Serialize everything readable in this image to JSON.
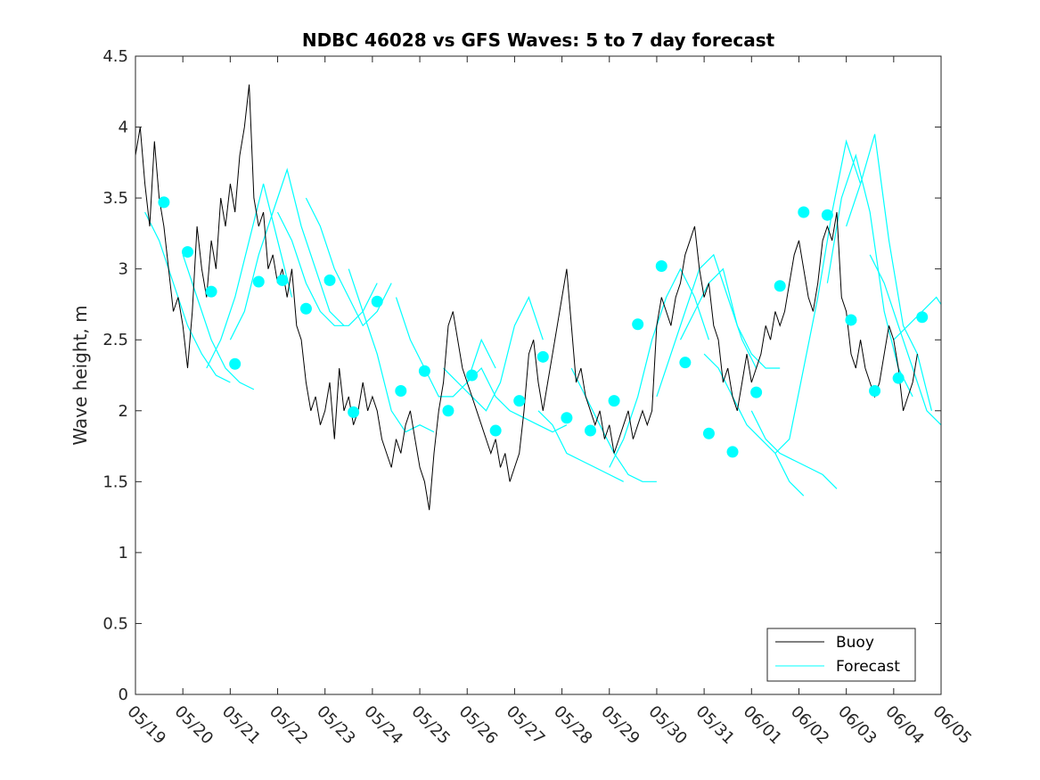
{
  "chart_data": {
    "type": "line",
    "title": "NDBC 46028 vs GFS Waves: 5 to 7 day forecast",
    "xlabel": "",
    "ylabel": "Wave height, m",
    "xlim": [
      0,
      17
    ],
    "ylim": [
      0,
      4.5
    ],
    "x_tick_labels": [
      "05/19",
      "05/20",
      "05/21",
      "05/22",
      "05/23",
      "05/24",
      "05/25",
      "05/26",
      "05/27",
      "05/28",
      "05/29",
      "05/30",
      "05/31",
      "06/01",
      "06/02",
      "06/03",
      "06/04",
      "06/05"
    ],
    "y_ticks": [
      0,
      0.5,
      1,
      1.5,
      2,
      2.5,
      3,
      3.5,
      4,
      4.5
    ],
    "y_tick_labels": [
      "0",
      "0.5",
      "1",
      "1.5",
      "2",
      "2.5",
      "3",
      "3.5",
      "4",
      "4.5"
    ],
    "grid": false,
    "legend": {
      "position": "bottom-right",
      "entries": [
        "Buoy",
        "Forecast"
      ]
    },
    "colors": {
      "buoy": "#000000",
      "forecast": "#00ffff"
    },
    "series": [
      {
        "name": "Buoy",
        "style": "line",
        "x": [
          0,
          0.1,
          0.2,
          0.3,
          0.4,
          0.5,
          0.6,
          0.7,
          0.8,
          0.9,
          1.0,
          1.1,
          1.2,
          1.3,
          1.4,
          1.5,
          1.6,
          1.7,
          1.8,
          1.9,
          2.0,
          2.1,
          2.2,
          2.3,
          2.4,
          2.5,
          2.6,
          2.7,
          2.8,
          2.9,
          3.0,
          3.1,
          3.2,
          3.3,
          3.4,
          3.5,
          3.6,
          3.7,
          3.8,
          3.9,
          4.0,
          4.1,
          4.2,
          4.3,
          4.4,
          4.5,
          4.6,
          4.7,
          4.8,
          4.9,
          5.0,
          5.1,
          5.2,
          5.3,
          5.4,
          5.5,
          5.6,
          5.7,
          5.8,
          5.9,
          6.0,
          6.1,
          6.2,
          6.3,
          6.4,
          6.5,
          6.6,
          6.7,
          6.8,
          6.9,
          7.0,
          7.1,
          7.2,
          7.3,
          7.4,
          7.5,
          7.6,
          7.7,
          7.8,
          7.9,
          8.0,
          8.1,
          8.2,
          8.3,
          8.4,
          8.5,
          8.6,
          8.7,
          8.8,
          8.9,
          9.0,
          9.1,
          9.2,
          9.3,
          9.4,
          9.5,
          9.6,
          9.7,
          9.8,
          9.9,
          10.0,
          10.1,
          10.2,
          10.3,
          10.4,
          10.5,
          10.6,
          10.7,
          10.8,
          10.9,
          11.0,
          11.1,
          11.2,
          11.3,
          11.4,
          11.5,
          11.6,
          11.7,
          11.8,
          11.9,
          12.0,
          12.1,
          12.2,
          12.3,
          12.4,
          12.5,
          12.6,
          12.7,
          12.8,
          12.9,
          13.0,
          13.1,
          13.2,
          13.3,
          13.4,
          13.5,
          13.6,
          13.7,
          13.8,
          13.9,
          14.0,
          14.1,
          14.2,
          14.3,
          14.4,
          14.5,
          14.6,
          14.7,
          14.8,
          14.9,
          15.0,
          15.1,
          15.2,
          15.3,
          15.4,
          15.5,
          15.6,
          15.7,
          15.8,
          15.9,
          16.0,
          16.1,
          16.2,
          16.3,
          16.4,
          16.5
        ],
        "y": [
          3.8,
          4.0,
          3.6,
          3.3,
          3.9,
          3.5,
          3.3,
          3.0,
          2.7,
          2.8,
          2.6,
          2.3,
          2.7,
          3.3,
          3.0,
          2.8,
          3.2,
          3.0,
          3.5,
          3.3,
          3.6,
          3.4,
          3.8,
          4.0,
          4.3,
          3.5,
          3.3,
          3.4,
          3.0,
          3.1,
          2.9,
          3.0,
          2.8,
          3.0,
          2.6,
          2.5,
          2.2,
          2.0,
          2.1,
          1.9,
          2.0,
          2.2,
          1.8,
          2.3,
          2.0,
          2.1,
          1.9,
          2.0,
          2.2,
          2.0,
          2.1,
          2.0,
          1.8,
          1.7,
          1.6,
          1.8,
          1.7,
          1.9,
          2.0,
          1.8,
          1.6,
          1.5,
          1.3,
          1.7,
          2.0,
          2.2,
          2.6,
          2.7,
          2.5,
          2.3,
          2.2,
          2.1,
          2.0,
          1.9,
          1.8,
          1.7,
          1.8,
          1.6,
          1.7,
          1.5,
          1.6,
          1.7,
          2.0,
          2.4,
          2.5,
          2.2,
          2.0,
          2.2,
          2.4,
          2.6,
          2.8,
          3.0,
          2.6,
          2.2,
          2.3,
          2.1,
          2.0,
          1.9,
          2.0,
          1.8,
          1.9,
          1.7,
          1.8,
          1.9,
          2.0,
          1.8,
          1.9,
          2.0,
          1.9,
          2.0,
          2.6,
          2.8,
          2.7,
          2.6,
          2.8,
          2.9,
          3.1,
          3.2,
          3.3,
          3.0,
          2.8,
          2.9,
          2.6,
          2.5,
          2.2,
          2.3,
          2.1,
          2.0,
          2.2,
          2.4,
          2.2,
          2.3,
          2.4,
          2.6,
          2.5,
          2.7,
          2.6,
          2.7,
          2.9,
          3.1,
          3.2,
          3.0,
          2.8,
          2.7,
          2.9,
          3.2,
          3.3,
          3.2,
          3.4,
          2.8,
          2.7,
          2.4,
          2.3,
          2.5,
          2.3,
          2.2,
          2.1,
          2.2,
          2.4,
          2.6,
          2.5,
          2.3,
          2.0,
          2.1,
          2.2,
          2.4
        ]
      },
      {
        "name": "Forecast",
        "style": "lines",
        "traces": [
          {
            "x": [
              0.2,
              0.5,
              0.8,
              1.1,
              1.4,
              1.7,
              2.0
            ],
            "y": [
              3.4,
              3.2,
              2.9,
              2.6,
              2.4,
              2.25,
              2.2
            ]
          },
          {
            "x": [
              1.0,
              1.3,
              1.6,
              1.9,
              2.2,
              2.5
            ],
            "y": [
              3.1,
              2.8,
              2.5,
              2.3,
              2.2,
              2.15
            ]
          },
          {
            "x": [
              1.5,
              1.8,
              2.1,
              2.4,
              2.7,
              3.0,
              3.3
            ],
            "y": [
              2.3,
              2.5,
              2.8,
              3.2,
              3.6,
              3.2,
              2.8
            ]
          },
          {
            "x": [
              2.0,
              2.3,
              2.6,
              2.9,
              3.2,
              3.5,
              3.8,
              4.1,
              4.4
            ],
            "y": [
              2.5,
              2.7,
              3.1,
              3.4,
              3.7,
              3.3,
              3.0,
              2.7,
              2.6
            ]
          },
          {
            "x": [
              3.0,
              3.3,
              3.6,
              3.9,
              4.2,
              4.5,
              4.8,
              5.1
            ],
            "y": [
              3.4,
              3.2,
              2.9,
              2.7,
              2.6,
              2.6,
              2.7,
              2.9
            ]
          },
          {
            "x": [
              3.6,
              3.9,
              4.2,
              4.5,
              4.8,
              5.1,
              5.4
            ],
            "y": [
              3.5,
              3.3,
              3.0,
              2.8,
              2.6,
              2.7,
              2.9
            ]
          },
          {
            "x": [
              4.5,
              4.8,
              5.1,
              5.4,
              5.7,
              6.0,
              6.3
            ],
            "y": [
              3.0,
              2.7,
              2.4,
              2.0,
              1.85,
              1.9,
              1.85
            ]
          },
          {
            "x": [
              5.5,
              5.8,
              6.1,
              6.4,
              6.7,
              7.0,
              7.3,
              7.6
            ],
            "y": [
              2.8,
              2.5,
              2.3,
              2.1,
              2.1,
              2.2,
              2.5,
              2.3
            ]
          },
          {
            "x": [
              6.5,
              6.8,
              7.1,
              7.4,
              7.7,
              8.0,
              8.3,
              8.6
            ],
            "y": [
              2.3,
              2.2,
              2.1,
              2.0,
              2.2,
              2.6,
              2.8,
              2.5
            ]
          },
          {
            "x": [
              7.0,
              7.3,
              7.6,
              7.9,
              8.2,
              8.5,
              8.8,
              9.1
            ],
            "y": [
              2.2,
              2.3,
              2.1,
              2.0,
              1.95,
              1.9,
              1.85,
              1.9
            ]
          },
          {
            "x": [
              8.5,
              8.8,
              9.1,
              9.4,
              9.7,
              10.0,
              10.3
            ],
            "y": [
              2.0,
              1.9,
              1.7,
              1.65,
              1.6,
              1.55,
              1.5
            ]
          },
          {
            "x": [
              9.2,
              9.5,
              9.8,
              10.1,
              10.4,
              10.7,
              11.0
            ],
            "y": [
              2.3,
              2.1,
              1.9,
              1.7,
              1.55,
              1.5,
              1.5
            ]
          },
          {
            "x": [
              10.0,
              10.3,
              10.6,
              10.9,
              11.2,
              11.5,
              11.8,
              12.1
            ],
            "y": [
              1.6,
              1.8,
              2.1,
              2.5,
              2.8,
              3.0,
              2.8,
              2.5
            ]
          },
          {
            "x": [
              11.0,
              11.3,
              11.6,
              11.9,
              12.2,
              12.5,
              12.8,
              13.1
            ],
            "y": [
              2.1,
              2.4,
              2.7,
              3.0,
              3.1,
              2.8,
              2.5,
              2.3
            ]
          },
          {
            "x": [
              11.5,
              11.8,
              12.1,
              12.4,
              12.7,
              13.0,
              13.3,
              13.6
            ],
            "y": [
              2.5,
              2.7,
              2.9,
              3.0,
              2.6,
              2.4,
              2.3,
              2.3
            ]
          },
          {
            "x": [
              12.0,
              12.3,
              12.6,
              12.9,
              13.2,
              13.5,
              13.8,
              14.1
            ],
            "y": [
              2.4,
              2.3,
              2.1,
              1.9,
              1.8,
              1.7,
              1.5,
              1.4
            ]
          },
          {
            "x": [
              13.0,
              13.3,
              13.6,
              13.9,
              14.2,
              14.5,
              14.8
            ],
            "y": [
              2.0,
              1.8,
              1.7,
              1.65,
              1.6,
              1.55,
              1.45
            ]
          },
          {
            "x": [
              13.5,
              13.8,
              14.1,
              14.4,
              14.7,
              15.0,
              15.3
            ],
            "y": [
              1.7,
              1.8,
              2.3,
              2.8,
              3.4,
              3.9,
              3.6
            ]
          },
          {
            "x": [
              14.6,
              14.9,
              15.2,
              15.5,
              15.8,
              16.1,
              16.4
            ],
            "y": [
              2.9,
              3.5,
              3.8,
              3.4,
              2.7,
              2.3,
              2.1
            ]
          },
          {
            "x": [
              15.0,
              15.3,
              15.6,
              15.9,
              16.2,
              16.5,
              16.8
            ],
            "y": [
              3.3,
              3.6,
              3.95,
              3.2,
              2.6,
              2.4,
              2.0
            ]
          },
          {
            "x": [
              15.5,
              15.8,
              16.1,
              16.4,
              16.7,
              17.0
            ],
            "y": [
              3.1,
              2.9,
              2.6,
              2.3,
              2.0,
              1.9
            ]
          },
          {
            "x": [
              16.0,
              16.3,
              16.6,
              16.9,
              17.0
            ],
            "y": [
              2.5,
              2.6,
              2.7,
              2.8,
              2.75
            ]
          }
        ]
      },
      {
        "name": "Forecast markers",
        "style": "markers",
        "x": [
          0.6,
          1.1,
          1.6,
          2.1,
          2.6,
          3.1,
          3.6,
          4.1,
          4.6,
          5.1,
          5.6,
          6.1,
          6.6,
          7.1,
          7.6,
          8.1,
          8.6,
          9.1,
          9.6,
          10.1,
          10.6,
          11.1,
          11.6,
          12.1,
          12.6,
          13.1,
          13.6,
          14.1,
          14.6,
          15.1,
          15.6,
          16.1,
          16.6
        ],
        "y": [
          3.47,
          3.12,
          2.84,
          2.33,
          2.91,
          2.92,
          2.72,
          2.92,
          1.99,
          2.77,
          2.14,
          2.28,
          2.0,
          2.25,
          1.86,
          2.07,
          2.38,
          1.95,
          1.86,
          2.07,
          2.61,
          3.02,
          2.34,
          1.84,
          1.71,
          2.13,
          2.88,
          3.4,
          3.38,
          2.64,
          2.14,
          2.23,
          2.66
        ]
      }
    ]
  }
}
